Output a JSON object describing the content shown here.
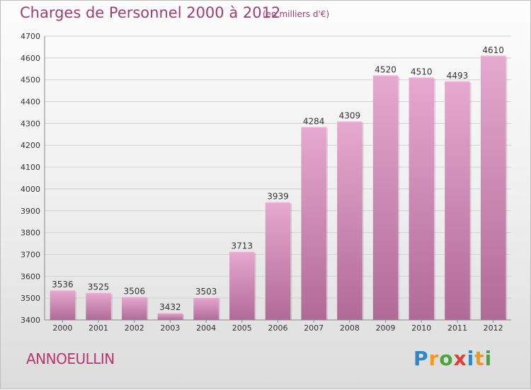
{
  "header": {
    "title": "Charges de Personnel 2000 à 2012",
    "subtitle": "(en milliers d'€)"
  },
  "footer": {
    "city": "ANNOEULLIN",
    "logo_text": "Proxiti"
  },
  "colors": {
    "title": "#a03d74",
    "bar_top": "#e6a9cf",
    "bar_bottom": "#b06a96",
    "city": "#b8356f"
  },
  "chart_data": {
    "type": "bar",
    "categories": [
      "2000",
      "2001",
      "2002",
      "2003",
      "2004",
      "2005",
      "2006",
      "2007",
      "2008",
      "2009",
      "2010",
      "2011",
      "2012"
    ],
    "values": [
      3536,
      3525,
      3506,
      3432,
      3503,
      3713,
      3939,
      4284,
      4309,
      4520,
      4510,
      4493,
      4610
    ],
    "ylim": [
      3400,
      4700
    ],
    "yticks": [
      3400,
      3500,
      3600,
      3700,
      3800,
      3900,
      4000,
      4100,
      4200,
      4300,
      4400,
      4500,
      4600,
      4700
    ],
    "grid": true,
    "data_labels": true,
    "title": "Charges de Personnel 2000 à 2012",
    "xlabel": "",
    "ylabel": ""
  }
}
